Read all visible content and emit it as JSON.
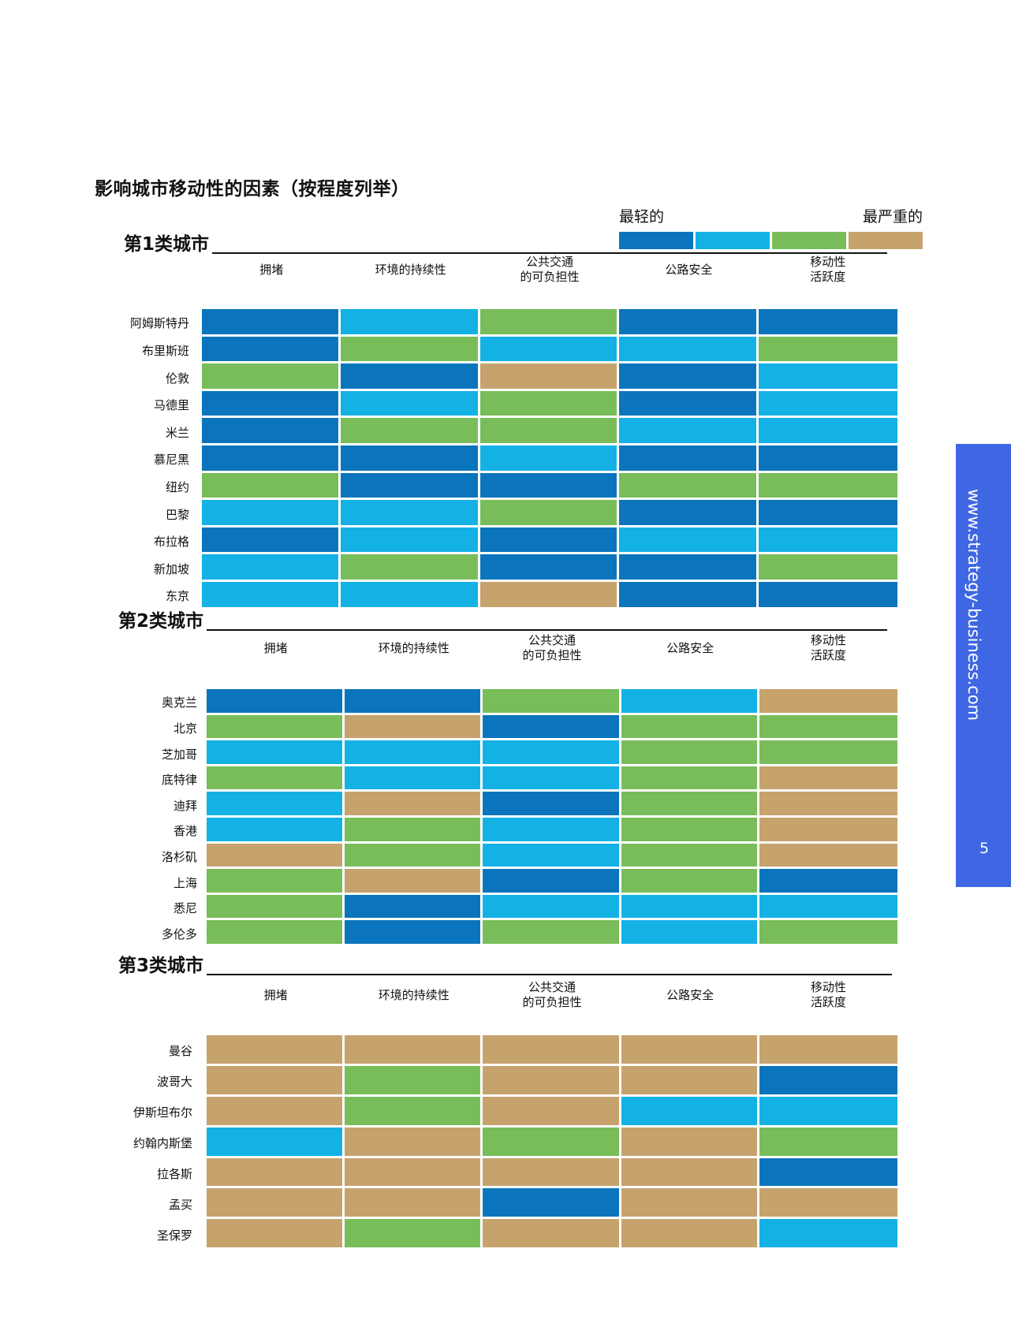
{
  "title": "影响城市移动性的因素（按程度列举）",
  "legend": {
    "low_label": "最轻的",
    "high_label": "最严重的",
    "levels": [
      {
        "level": 1,
        "color": "#0a75bc"
      },
      {
        "level": 2,
        "color": "#14b1e5"
      },
      {
        "level": 3,
        "color": "#78bd5a"
      },
      {
        "level": 4,
        "color": "#c6a26d"
      }
    ]
  },
  "columns": [
    "拥堵",
    "环境的持续性",
    "公共交通\n的可负担性",
    "公路安全",
    "移动性\n活跃度"
  ],
  "side": {
    "url": "www.strategy-business.com",
    "page": "5",
    "color": "#3f67e4"
  },
  "chart_data": {
    "type": "heatmap",
    "title": "影响城市移动性的因素（按程度列举）",
    "scale": {
      "1": "最轻的",
      "4": "最严重的"
    },
    "categories": [
      "拥堵",
      "环境的持续性",
      "公共交通的可负担性",
      "公路安全",
      "移动性活跃度"
    ],
    "groups": [
      {
        "name": "第1类城市",
        "rows": [
          {
            "city": "阿姆斯特丹",
            "values": [
              1,
              2,
              3,
              1,
              1
            ]
          },
          {
            "city": "布里斯班",
            "values": [
              1,
              3,
              2,
              2,
              3
            ]
          },
          {
            "city": "伦敦",
            "values": [
              3,
              1,
              4,
              1,
              2
            ]
          },
          {
            "city": "马德里",
            "values": [
              1,
              2,
              3,
              1,
              2
            ]
          },
          {
            "city": "米兰",
            "values": [
              1,
              3,
              3,
              2,
              2
            ]
          },
          {
            "city": "慕尼黑",
            "values": [
              1,
              1,
              2,
              1,
              1
            ]
          },
          {
            "city": "纽约",
            "values": [
              3,
              1,
              1,
              3,
              3
            ]
          },
          {
            "city": "巴黎",
            "values": [
              2,
              2,
              3,
              1,
              1
            ]
          },
          {
            "city": "布拉格",
            "values": [
              1,
              2,
              1,
              2,
              2
            ]
          },
          {
            "city": "新加坡",
            "values": [
              2,
              3,
              1,
              1,
              3
            ]
          },
          {
            "city": "东京",
            "values": [
              2,
              2,
              4,
              1,
              1
            ]
          }
        ]
      },
      {
        "name": "第2类城市",
        "rows": [
          {
            "city": "奥克兰",
            "values": [
              1,
              1,
              3,
              2,
              4
            ]
          },
          {
            "city": "北京",
            "values": [
              3,
              4,
              1,
              3,
              3
            ]
          },
          {
            "city": "芝加哥",
            "values": [
              2,
              2,
              2,
              3,
              3
            ]
          },
          {
            "city": "底特律",
            "values": [
              3,
              2,
              2,
              3,
              4
            ]
          },
          {
            "city": "迪拜",
            "values": [
              2,
              4,
              1,
              3,
              4
            ]
          },
          {
            "city": "香港",
            "values": [
              2,
              3,
              2,
              3,
              4
            ]
          },
          {
            "city": "洛杉矶",
            "values": [
              4,
              3,
              2,
              3,
              4
            ]
          },
          {
            "city": "上海",
            "values": [
              3,
              4,
              1,
              3,
              1
            ]
          },
          {
            "city": "悉尼",
            "values": [
              3,
              1,
              2,
              2,
              2
            ]
          },
          {
            "city": "多伦多",
            "values": [
              3,
              1,
              3,
              2,
              3
            ]
          }
        ]
      },
      {
        "name": "第3类城市",
        "rows": [
          {
            "city": "曼谷",
            "values": [
              4,
              4,
              4,
              4,
              4
            ]
          },
          {
            "city": "波哥大",
            "values": [
              4,
              3,
              4,
              4,
              1
            ]
          },
          {
            "city": "伊斯坦布尔",
            "values": [
              4,
              3,
              4,
              2,
              2
            ]
          },
          {
            "city": "约翰内斯堡",
            "values": [
              2,
              4,
              3,
              4,
              3
            ]
          },
          {
            "city": "拉各斯",
            "values": [
              4,
              4,
              4,
              4,
              1
            ]
          },
          {
            "city": "孟买",
            "values": [
              4,
              4,
              1,
              4,
              4
            ]
          },
          {
            "city": "圣保罗",
            "values": [
              4,
              3,
              4,
              4,
              2
            ]
          }
        ]
      }
    ]
  }
}
